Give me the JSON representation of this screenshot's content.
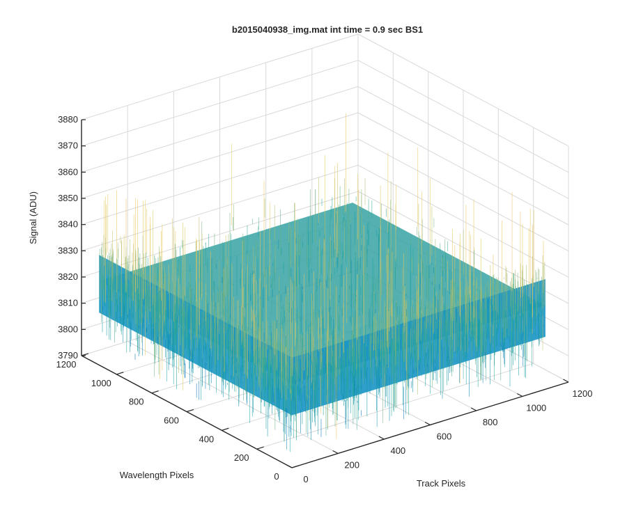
{
  "chart_data": {
    "type": "surface3d",
    "title": "b2015040938_img.mat int time = 0.9 sec   BS1",
    "xlabel": "Track Pixels",
    "ylabel": "Wavelength Pixels",
    "zlabel": "Signal (ADU)",
    "xlim": [
      0,
      1200
    ],
    "ylim": [
      0,
      1200
    ],
    "zlim": [
      3790,
      3880
    ],
    "x_ticks": [
      0,
      200,
      400,
      600,
      800,
      1000,
      1200
    ],
    "y_ticks": [
      0,
      200,
      400,
      600,
      800,
      1000,
      1200
    ],
    "z_ticks": [
      3790,
      3800,
      3810,
      3820,
      3830,
      3840,
      3850,
      3860,
      3870,
      3880
    ],
    "grid": true,
    "colormap": "parula",
    "data_extent": {
      "track_pixels": [
        0,
        1100
      ],
      "wavelength_pixels": [
        0,
        1100
      ]
    },
    "signal_summary": {
      "mean": 3822,
      "typical_range": [
        3805,
        3845
      ],
      "spike_min": 3795,
      "spike_max": 3862
    },
    "colors": {
      "low": "#0072bd",
      "mid": "#19a3a0",
      "high": "#e8c65a",
      "axis": "#262626",
      "grid": "#d9d9d9"
    }
  }
}
